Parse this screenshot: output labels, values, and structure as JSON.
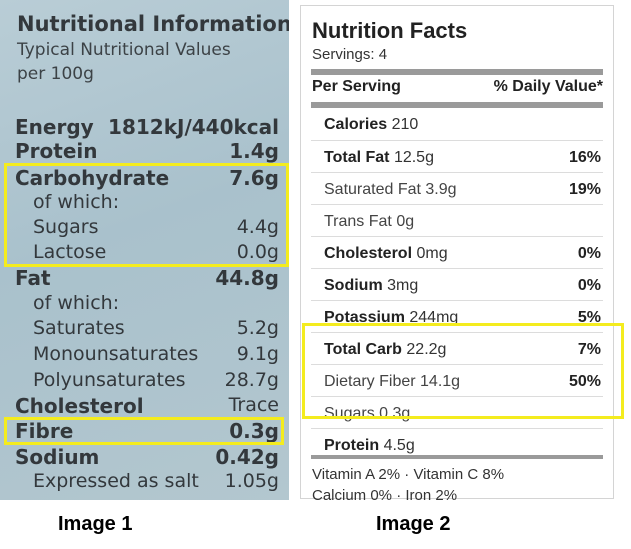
{
  "image1": {
    "title": "Nutritional Information",
    "subtitle_1": "Typical Nutritional Values",
    "subtitle_2": "per 100g",
    "rows": [
      {
        "label": "Energy",
        "value": "1812kJ/440kcal"
      },
      {
        "label": "Protein",
        "value": "1.4g"
      },
      {
        "label": "Carbohydrate",
        "value": "7.6g"
      },
      {
        "label": "of which:",
        "value": ""
      },
      {
        "label": "Sugars",
        "value": "4.4g"
      },
      {
        "label": "Lactose",
        "value": "0.0g"
      },
      {
        "label": "Fat",
        "value": "44.8g"
      },
      {
        "label": "of which:",
        "value": ""
      },
      {
        "label": "Saturates",
        "value": "5.2g"
      },
      {
        "label": "Monounsaturates",
        "value": "9.1g"
      },
      {
        "label": "Polyunsaturates",
        "value": "28.7g"
      },
      {
        "label": "Cholesterol",
        "value": "Trace"
      },
      {
        "label": "Fibre",
        "value": "0.3g"
      },
      {
        "label": "Sodium",
        "value": "0.42g"
      },
      {
        "label": "Expressed as salt",
        "value": "1.05g"
      }
    ],
    "highlight_color": "#f4ec1e",
    "caption": "Image 1"
  },
  "image2": {
    "title": "Nutrition Facts",
    "servings": "Servings: 4",
    "header_left": "Per Serving",
    "header_right": "% Daily Value*",
    "rows": [
      {
        "name": "Calories",
        "amount": "210",
        "pct": ""
      },
      {
        "name": "Total Fat",
        "amount": "12.5g",
        "pct": "16%"
      },
      {
        "name": "Saturated Fat",
        "amount": "3.9g",
        "pct": "19%"
      },
      {
        "name": "Trans Fat",
        "amount": "0g",
        "pct": ""
      },
      {
        "name": "Cholesterol",
        "amount": "0mg",
        "pct": "0%"
      },
      {
        "name": "Sodium",
        "amount": "3mg",
        "pct": "0%"
      },
      {
        "name": "Potassium",
        "amount": "244mg",
        "pct": "5%"
      },
      {
        "name": "Total Carb",
        "amount": "22.2g",
        "pct": "7%"
      },
      {
        "name": "Dietary Fiber",
        "amount": "14.1g",
        "pct": "50%"
      },
      {
        "name": "Sugars",
        "amount": "0.3g",
        "pct": ""
      },
      {
        "name": "Protein",
        "amount": "4.5g",
        "pct": ""
      }
    ],
    "vitamins_line1": "Vitamin A 2% · Vitamin C 8%",
    "vitamins_line2": "Calcium 0% · Iron 2%",
    "caption": "Image 2"
  }
}
